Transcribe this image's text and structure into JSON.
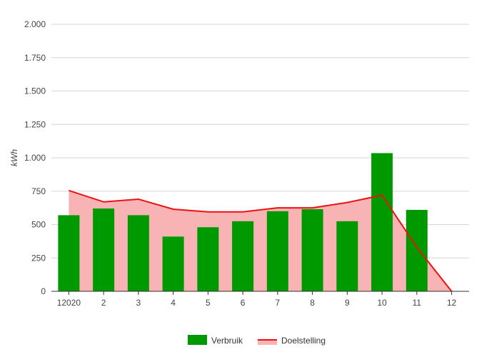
{
  "chart_data": {
    "type": "bar",
    "title": "",
    "xlabel": "",
    "ylabel": "kWh",
    "ylim": [
      0,
      2000
    ],
    "yticks": [
      0,
      250,
      500,
      750,
      1000,
      1250,
      1500,
      1750,
      2000
    ],
    "ytick_labels": [
      "0",
      "250",
      "500",
      "750",
      "1.000",
      "1.250",
      "1.500",
      "1.750",
      "2.000"
    ],
    "categories": [
      "12020",
      "2",
      "3",
      "4",
      "5",
      "6",
      "7",
      "8",
      "9",
      "10",
      "11",
      "12"
    ],
    "grid": true,
    "legend_position": "bottom",
    "series": [
      {
        "name": "Verbruik",
        "kind": "bar",
        "color": "#009900",
        "values": [
          570,
          620,
          570,
          410,
          480,
          525,
          600,
          615,
          525,
          1035,
          610,
          null
        ]
      },
      {
        "name": "Doelstelling",
        "kind": "area-line",
        "line_color": "#ee1111",
        "fill_color": "#f8b4b4",
        "values": [
          755,
          670,
          690,
          615,
          595,
          595,
          625,
          625,
          665,
          720,
          330,
          0
        ]
      }
    ]
  }
}
